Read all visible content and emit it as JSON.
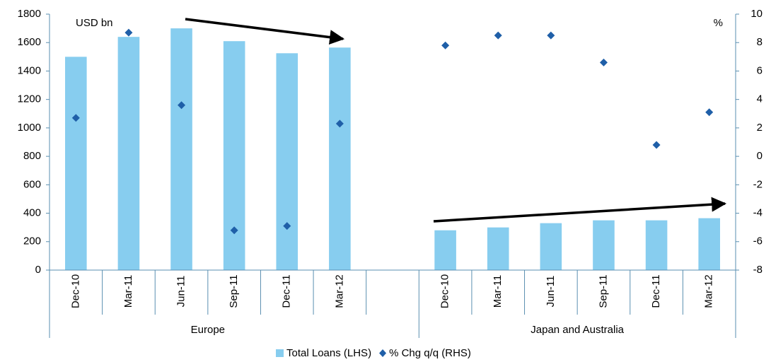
{
  "chart_data": {
    "type": "bar",
    "left_axis_label": "USD bn",
    "right_axis_label": "%",
    "categories": [
      "Dec-10",
      "Mar-11",
      "Jun-11",
      "Sep-11",
      "Dec-11",
      "Mar-12",
      null,
      "Dec-10",
      "Mar-11",
      "Jun-11",
      "Sep-11",
      "Dec-11",
      "Mar-12"
    ],
    "groups": [
      "Europe",
      "Japan and Australia"
    ],
    "series": [
      {
        "name": "Total Loans (LHS)",
        "type": "bar",
        "color": "#87cdef",
        "values": [
          1500,
          1640,
          1700,
          1610,
          1525,
          1565,
          null,
          280,
          300,
          330,
          350,
          350,
          365
        ]
      },
      {
        "name": "% Chg q/q (RHS)",
        "type": "scatter",
        "axis": "y2",
        "color": "#1f5fa8",
        "values": [
          2.7,
          8.7,
          3.6,
          -5.2,
          -4.9,
          2.3,
          null,
          7.8,
          8.5,
          8.5,
          6.6,
          0.8,
          3.1
        ]
      }
    ],
    "ylim": [
      0,
      1800
    ],
    "yticks": [
      0,
      200,
      400,
      600,
      800,
      1000,
      1200,
      1400,
      1600,
      1800
    ],
    "y2lim": [
      -8,
      10
    ],
    "y2ticks": [
      -8,
      -6,
      -4,
      -2,
      0,
      2,
      4,
      6,
      8,
      10
    ],
    "legend": "bottom"
  }
}
